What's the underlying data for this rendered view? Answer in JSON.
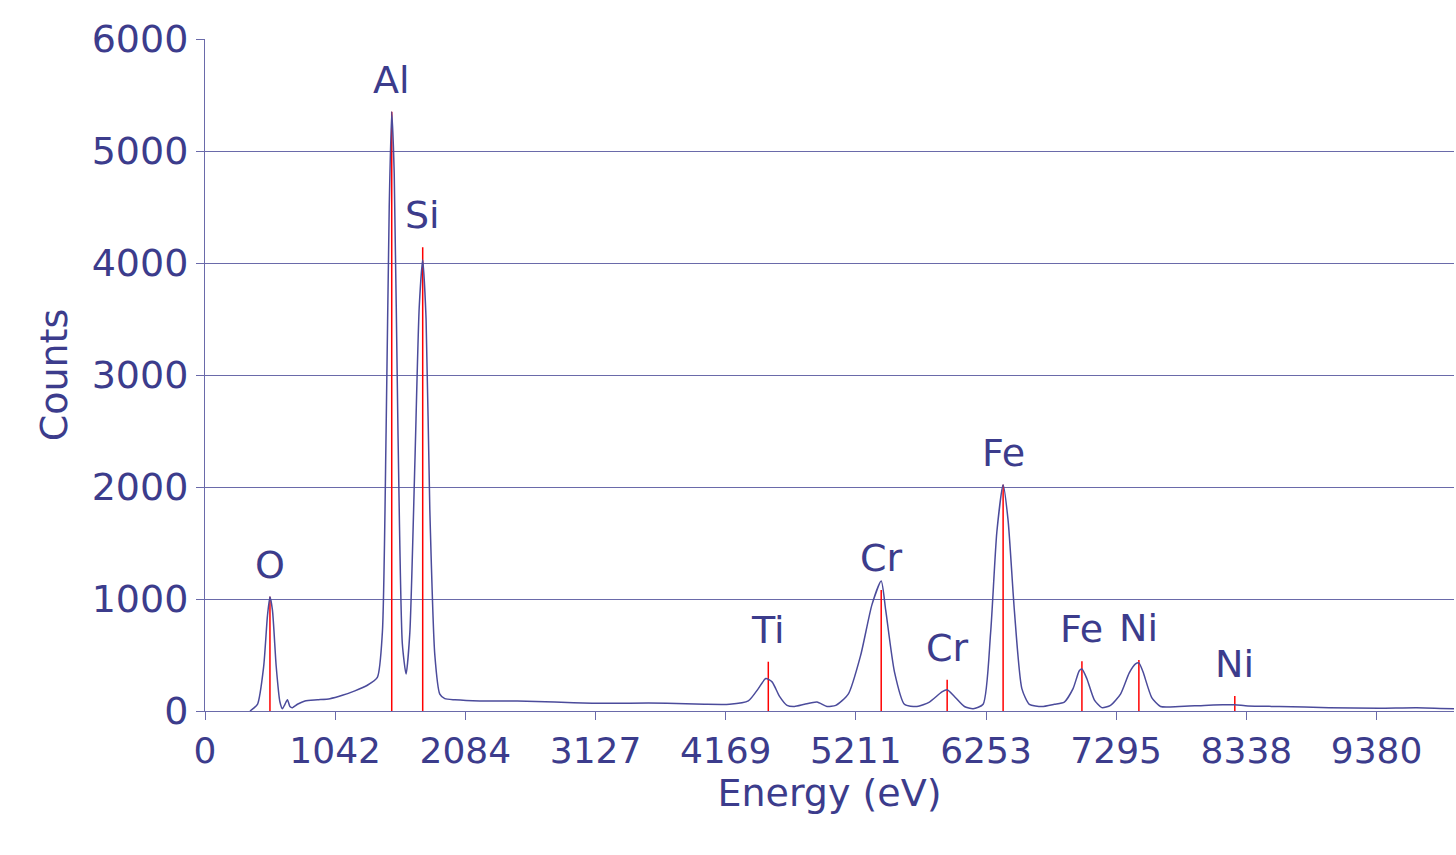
{
  "chart_data": {
    "type": "line",
    "x_label": "Energy (eV)",
    "y_label": "Counts",
    "color": "#4b4b9b",
    "grid": true,
    "xlim": [
      0,
      10000
    ],
    "xticks": [
      0,
      1042,
      2084,
      3127,
      4169,
      5211,
      6253,
      7295,
      8338,
      9380
    ],
    "ylim": [
      0,
      6000
    ],
    "yticks": [
      0,
      1000,
      2000,
      3000,
      4000,
      5000,
      6000
    ],
    "x": [
      360,
      420,
      470,
      500,
      520,
      540,
      570,
      600,
      620,
      640,
      660,
      680,
      700,
      740,
      800,
      900,
      1000,
      1100,
      1200,
      1300,
      1380,
      1420,
      1450,
      1475,
      1495,
      1515,
      1545,
      1580,
      1610,
      1640,
      1680,
      1715,
      1743,
      1770,
      1800,
      1840,
      1880,
      1920,
      2000,
      2200,
      2500,
      2800,
      3100,
      3400,
      3700,
      4000,
      4200,
      4350,
      4430,
      4490,
      4540,
      4600,
      4660,
      4720,
      4800,
      4900,
      4980,
      5050,
      5150,
      5250,
      5340,
      5414,
      5450,
      5520,
      5600,
      5700,
      5800,
      5900,
      5942,
      6000,
      6080,
      6150,
      6230,
      6290,
      6340,
      6390,
      6430,
      6480,
      6540,
      6600,
      6700,
      6800,
      6880,
      6950,
      7000,
      7021,
      7060,
      7120,
      7180,
      7250,
      7330,
      7400,
      7450,
      7477,
      7510,
      7580,
      7650,
      7800,
      8000,
      8150,
      8245,
      8350,
      8600,
      9000,
      9400,
      9700,
      10000
    ],
    "values": [
      0,
      60,
      400,
      850,
      1020,
      900,
      400,
      80,
      20,
      60,
      100,
      40,
      30,
      60,
      90,
      100,
      110,
      140,
      180,
      230,
      300,
      700,
      2500,
      4500,
      5350,
      4800,
      2500,
      600,
      330,
      700,
      2200,
      3600,
      4030,
      3500,
      1800,
      500,
      150,
      110,
      100,
      90,
      90,
      80,
      70,
      70,
      70,
      60,
      60,
      90,
      200,
      290,
      260,
      130,
      50,
      40,
      60,
      80,
      40,
      50,
      150,
      500,
      950,
      1160,
      900,
      350,
      60,
      40,
      80,
      170,
      190,
      130,
      40,
      20,
      60,
      700,
      1600,
      2020,
      1700,
      900,
      200,
      60,
      40,
      60,
      80,
      200,
      360,
      375,
      290,
      100,
      30,
      50,
      150,
      340,
      420,
      430,
      350,
      120,
      40,
      40,
      50,
      55,
      55,
      45,
      40,
      30,
      25,
      30,
      20
    ],
    "annotations": [
      {
        "text": "O",
        "x": 520,
        "y": 1020,
        "color": "#ff0000"
      },
      {
        "text": "Al",
        "x": 1495,
        "y": 5350,
        "color": "#ff0000"
      },
      {
        "text": "Si",
        "x": 1743,
        "y": 4140,
        "color": "#ff0000"
      },
      {
        "text": "Ti",
        "x": 4510,
        "y": 440,
        "color": "#ff0000"
      },
      {
        "text": "Cr",
        "x": 5414,
        "y": 1080,
        "color": "#ff0000"
      },
      {
        "text": "Cr",
        "x": 5942,
        "y": 280,
        "color": "#ff0000"
      },
      {
        "text": "Fe",
        "x": 6390,
        "y": 2020,
        "color": "#ff0000"
      },
      {
        "text": "Fe",
        "x": 7021,
        "y": 445,
        "color": "#ff0000"
      },
      {
        "text": "Ni",
        "x": 7477,
        "y": 455,
        "color": "#ff0000"
      },
      {
        "text": "Ni",
        "x": 8245,
        "y": 135,
        "color": "#ff0000"
      }
    ]
  }
}
